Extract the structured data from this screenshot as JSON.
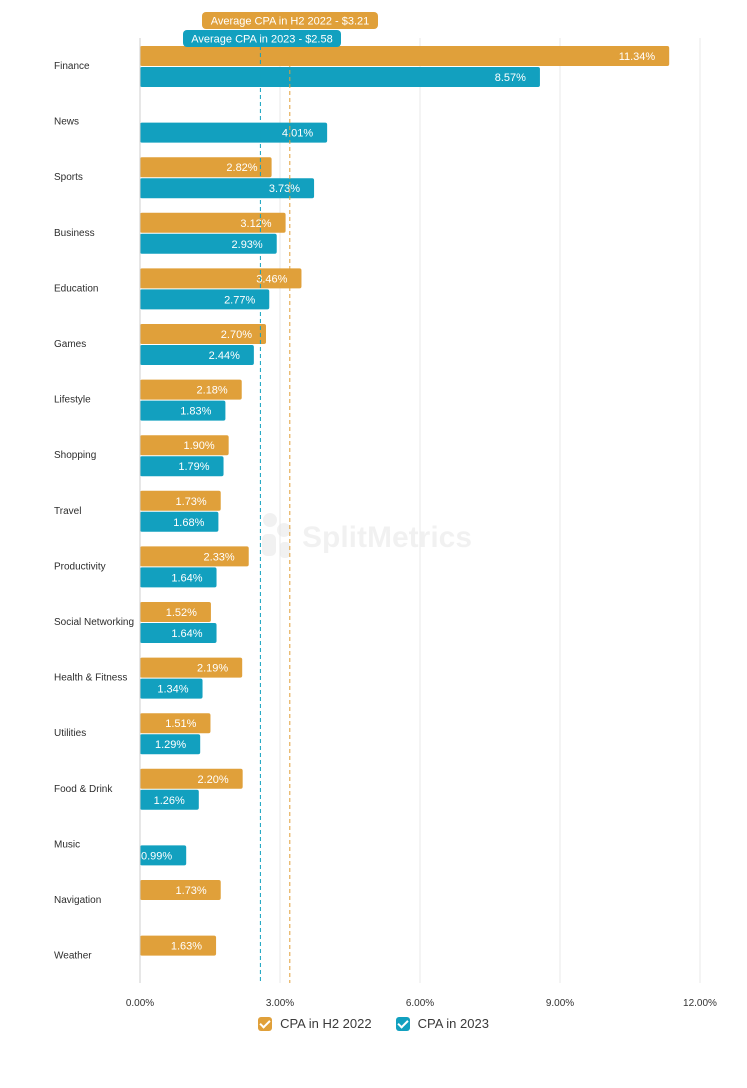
{
  "colors": {
    "h2_2022": "#E0A03A",
    "y2023": "#12A0BF"
  },
  "watermark": "SplitMetrics",
  "chart_data": {
    "type": "bar",
    "orientation": "horizontal",
    "categories": [
      "Finance",
      "News",
      "Sports",
      "Business",
      "Education",
      "Games",
      "Lifestyle",
      "Shopping",
      "Travel",
      "Productivity",
      "Social Networking",
      "Health & Fitness",
      "Utilities",
      "Food & Drink",
      "Music",
      "Navigation",
      "Weather"
    ],
    "series": [
      {
        "name": "CPA in H2 2022",
        "values": [
          11.34,
          null,
          2.82,
          3.12,
          3.46,
          2.7,
          2.18,
          1.9,
          1.73,
          2.33,
          1.52,
          2.19,
          1.51,
          2.2,
          null,
          1.73,
          1.63
        ],
        "labels": [
          "11.34%",
          "",
          "2.82%",
          "3.12%",
          "3.46%",
          "2.70%",
          "2.18%",
          "1.90%",
          "1.73%",
          "2.33%",
          "1.52%",
          "2.19%",
          "1.51%",
          "2.20%",
          "",
          "1.73%",
          "1.63%"
        ]
      },
      {
        "name": "CPA in 2023",
        "values": [
          8.57,
          4.01,
          3.73,
          2.93,
          2.77,
          2.44,
          1.83,
          1.79,
          1.68,
          1.64,
          1.64,
          1.34,
          1.29,
          1.26,
          0.99,
          null,
          null
        ],
        "labels": [
          "8.57%",
          "4.01%",
          "3.73%",
          "2.93%",
          "2.77%",
          "2.44%",
          "1.83%",
          "1.79%",
          "1.68%",
          "1.64%",
          "1.64%",
          "1.34%",
          "1.29%",
          "1.26%",
          "0.99%",
          "",
          ""
        ]
      }
    ],
    "xlim": [
      0,
      12
    ],
    "xticks": [
      0,
      3,
      6,
      9,
      12
    ],
    "xtick_labels": [
      "0.00%",
      "3.00%",
      "6.00%",
      "9.00%",
      "12.00%"
    ],
    "reference_lines": [
      {
        "label": "Average CPA in H2 2022 - $3.21",
        "value": 3.21,
        "series": "CPA in H2 2022"
      },
      {
        "label": "Average CPA in 2023 - $2.58",
        "value": 2.58,
        "series": "CPA in 2023"
      }
    ],
    "grid": true,
    "legend": "bottom-center"
  }
}
